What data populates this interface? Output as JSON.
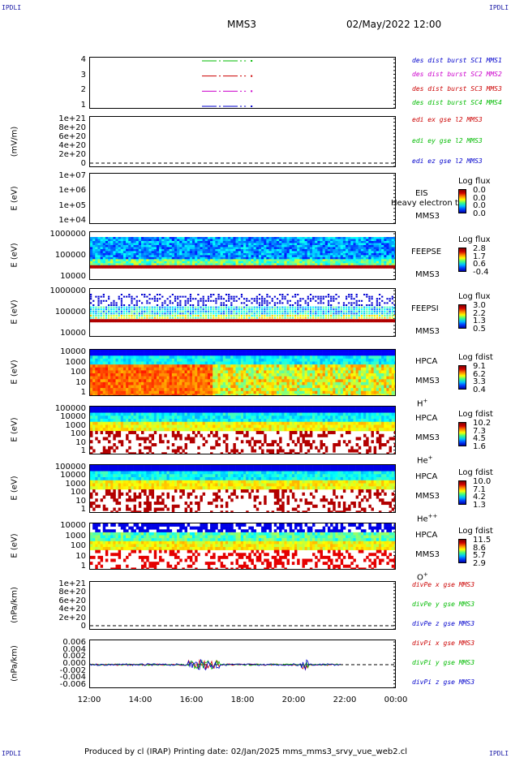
{
  "corners": {
    "top_left": "IPDLI",
    "top_right": "IPDLI",
    "bottom_left": "IPDLI",
    "bottom_right": "IPDLI"
  },
  "header": {
    "spacecraft": "MMS3",
    "datetime": "02/May/2022 12:00"
  },
  "footer": {
    "text": "Produced by cl (IRAP)    Printing date: 02/Jan/2025    mms_mms3_srvy_vue_web2.cl"
  },
  "chart_data": [
    {
      "type": "line",
      "name": "des-dist-burst",
      "ylabel": "",
      "yticks": [
        "4",
        "3",
        "2",
        "1"
      ],
      "series": [
        {
          "name": "des dist burst SC1 MMS1",
          "color": "#0000cc",
          "y": 1
        },
        {
          "name": "des dist burst SC2 MMS2",
          "color": "#cc00cc",
          "y": 2
        },
        {
          "name": "des dist burst SC3 MMS3",
          "color": "#cc0000",
          "y": 3
        },
        {
          "name": "des dist burst SC4 MMS4",
          "color": "#00bb00",
          "y": 4
        }
      ],
      "interval": [
        "16:00",
        "18:25"
      ]
    },
    {
      "type": "line",
      "name": "edi-e-gse",
      "ylabel": "(mV/m)",
      "yticks": [
        "1e+21",
        "8e+20",
        "6e+20",
        "4e+20",
        "2e+20",
        "0"
      ],
      "series": [
        {
          "name": "edi ex gse l2 MMS3",
          "color": "#cc0000"
        },
        {
          "name": "edi ey gse l2 MMS3",
          "color": "#00bb00"
        },
        {
          "name": "edi ez gse l2 MMS3",
          "color": "#0000cc"
        }
      ]
    },
    {
      "type": "heatmap",
      "name": "eis",
      "ylabel": "E (eV)",
      "yticks": [
        "1e+07",
        "1e+06",
        "1e+05",
        "1e+04"
      ],
      "instrument": [
        "EIS",
        "MMS3"
      ],
      "overlay": "Heavy electron to",
      "cb_title": "Log flux",
      "cb_values": [
        "0.0",
        "0.0",
        "0.0",
        "0.0"
      ]
    },
    {
      "type": "heatmap",
      "name": "feepse",
      "ylabel": "E (eV)",
      "yticks": [
        "1000000",
        "100000",
        "10000"
      ],
      "instrument": [
        "FEEPSE",
        "MMS3"
      ],
      "cb_title": "Log flux",
      "cb_values": [
        "2.8",
        "1.7",
        "0.6",
        "-0.4"
      ]
    },
    {
      "type": "heatmap",
      "name": "feepsi",
      "ylabel": "E (eV)",
      "yticks": [
        "1000000",
        "100000",
        "10000"
      ],
      "instrument": [
        "FEEPSI",
        "MMS3"
      ],
      "cb_title": "Log flux",
      "cb_values": [
        "3.0",
        "2.2",
        "1.3",
        "0.5"
      ]
    },
    {
      "type": "heatmap",
      "name": "hpca-h",
      "ylabel": "E (eV)",
      "yticks": [
        "10000",
        "1000",
        "100",
        "10",
        "1"
      ],
      "instrument": [
        "HPCA",
        "MMS3",
        "H"
      ],
      "ion_charge": "+",
      "cb_title": "Log fdist",
      "cb_values": [
        "9.1",
        "6.2",
        "3.3",
        "0.4"
      ]
    },
    {
      "type": "heatmap",
      "name": "hpca-he",
      "ylabel": "E (eV)",
      "yticks": [
        "100000",
        "10000",
        "1000",
        "100",
        "10",
        "1"
      ],
      "instrument": [
        "HPCA",
        "MMS3",
        "He"
      ],
      "ion_charge": "+",
      "cb_title": "Log fdist",
      "cb_values": [
        "10.2",
        "7.3",
        "4.5",
        "1.6"
      ]
    },
    {
      "type": "heatmap",
      "name": "hpca-hepp",
      "ylabel": "E (eV)",
      "yticks": [
        "100000",
        "10000",
        "1000",
        "100",
        "10",
        "1"
      ],
      "instrument": [
        "HPCA",
        "MMS3",
        "He"
      ],
      "ion_charge": "++",
      "cb_title": "Log fdist",
      "cb_values": [
        "10.0",
        "7.1",
        "4.2",
        "1.3"
      ]
    },
    {
      "type": "heatmap",
      "name": "hpca-o",
      "ylabel": "E (eV)",
      "yticks": [
        "10000",
        "1000",
        "100",
        "10",
        "1"
      ],
      "instrument": [
        "HPCA",
        "MMS3",
        "O"
      ],
      "ion_charge": "+",
      "cb_title": "Log fdist",
      "cb_values": [
        "11.5",
        "8.6",
        "5.7",
        "2.9"
      ]
    },
    {
      "type": "line",
      "name": "divpe",
      "ylabel": "(nPa/km)",
      "yticks": [
        "1e+21",
        "8e+20",
        "6e+20",
        "4e+20",
        "2e+20",
        "0"
      ],
      "series": [
        {
          "name": "divPe x gse MMS3",
          "color": "#cc0000"
        },
        {
          "name": "divPe y gse MMS3",
          "color": "#00bb00"
        },
        {
          "name": "divPe z gse MMS3",
          "color": "#0000cc"
        }
      ]
    },
    {
      "type": "line",
      "name": "divpi",
      "ylabel": "(nPa/km)",
      "yticks": [
        "0.006",
        "0.004",
        "0.002",
        "0.000",
        "-0.002",
        "-0.004",
        "-0.006"
      ],
      "series": [
        {
          "name": "divPi x gse MMS3",
          "color": "#cc0000"
        },
        {
          "name": "divPi y gse MMS3",
          "color": "#00bb00"
        },
        {
          "name": "divPi z gse MMS3",
          "color": "#0000cc"
        }
      ]
    }
  ],
  "xaxis": {
    "ticks": [
      "12:00",
      "14:00",
      "16:00",
      "18:00",
      "20:00",
      "22:00",
      "00:00"
    ]
  }
}
